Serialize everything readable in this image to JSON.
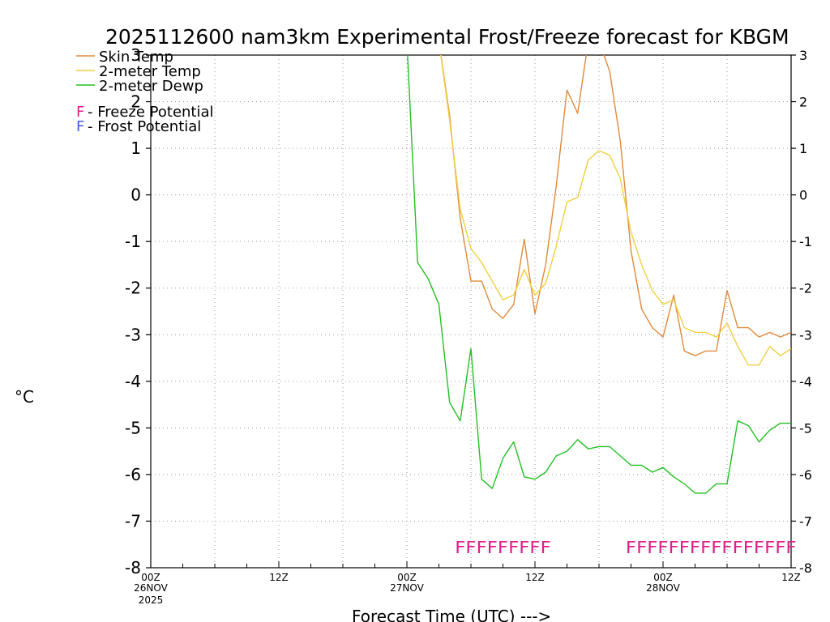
{
  "chart_data": {
    "type": "line",
    "title": "2025112600 nam3km Experimental Frost/Freeze forecast for KBGM",
    "xlabel": "Forecast Time (UTC) --->",
    "ylabel": "°C",
    "ylim": [
      -8,
      3
    ],
    "xlim": [
      0,
      60
    ],
    "grid": true,
    "yticks": [
      -8,
      -7,
      -6,
      -5,
      -4,
      -3,
      -2,
      -1,
      0,
      1,
      2,
      3
    ],
    "ytick_labels": [
      "-8",
      "-7",
      "-6",
      "-5",
      "-4",
      "-3",
      "-2",
      "-1",
      "0",
      "1",
      "2",
      "3"
    ],
    "xticks": [
      {
        "hour": 0,
        "label": "00Z",
        "sub": "26NOV",
        "sub2": "2025"
      },
      {
        "hour": 12,
        "label": "12Z",
        "sub": "",
        "sub2": ""
      },
      {
        "hour": 24,
        "label": "00Z",
        "sub": "27NOV",
        "sub2": ""
      },
      {
        "hour": 36,
        "label": "12Z",
        "sub": "",
        "sub2": ""
      },
      {
        "hour": 48,
        "label": "00Z",
        "sub": "28NOV",
        "sub2": ""
      },
      {
        "hour": 60,
        "label": "12Z",
        "sub": "",
        "sub2": ""
      }
    ],
    "series": [
      {
        "name": "Skin Temp",
        "color": "#e08a3c",
        "x": [
          27,
          28,
          29,
          30,
          31,
          32,
          33,
          34,
          35,
          36,
          37,
          38,
          39,
          40,
          41,
          42,
          43,
          44,
          45,
          46,
          47,
          48,
          49,
          50,
          51,
          52,
          53,
          54,
          55,
          56,
          57,
          58,
          59,
          60
        ],
        "y": [
          3.3,
          1.7,
          -0.5,
          -1.85,
          -1.85,
          -2.45,
          -2.65,
          -2.35,
          -0.95,
          -2.55,
          -1.5,
          0.2,
          2.25,
          1.75,
          3.3,
          3.3,
          2.65,
          1.15,
          -1.2,
          -2.45,
          -2.85,
          -3.05,
          -2.15,
          -3.35,
          -3.45,
          -3.35,
          -3.35,
          -2.05,
          -2.85,
          -2.85,
          -3.05,
          -2.95,
          -3.05,
          -2.95
        ]
      },
      {
        "name": "2-meter Temp",
        "color": "#f0d040",
        "x": [
          27,
          28,
          29,
          30,
          31,
          32,
          33,
          34,
          35,
          36,
          37,
          38,
          39,
          40,
          41,
          42,
          43,
          44,
          45,
          46,
          47,
          48,
          49,
          50,
          51,
          52,
          53,
          54,
          55,
          56,
          57,
          58,
          59,
          60
        ],
        "y": [
          3.3,
          1.6,
          -0.3,
          -1.15,
          -1.45,
          -1.85,
          -2.25,
          -2.15,
          -1.6,
          -2.15,
          -1.9,
          -1.1,
          -0.15,
          -0.05,
          0.75,
          0.95,
          0.85,
          0.35,
          -0.8,
          -1.5,
          -2.05,
          -2.35,
          -2.25,
          -2.85,
          -2.95,
          -2.95,
          -3.05,
          -2.75,
          -3.25,
          -3.65,
          -3.65,
          -3.25,
          -3.45,
          -3.3
        ]
      },
      {
        "name": "2-meter Dewp",
        "color": "#22c022",
        "x": [
          24,
          25,
          26,
          27,
          28,
          29,
          30,
          31,
          32,
          33,
          34,
          35,
          36,
          37,
          38,
          39,
          40,
          41,
          42,
          43,
          44,
          45,
          46,
          47,
          48,
          49,
          50,
          51,
          52,
          53,
          54,
          55,
          56,
          57,
          58,
          59,
          60
        ],
        "y": [
          3.3,
          -1.45,
          -1.8,
          -2.35,
          -4.45,
          -4.85,
          -3.3,
          -6.1,
          -6.3,
          -5.65,
          -5.3,
          -6.05,
          -6.1,
          -5.95,
          -5.6,
          -5.5,
          -5.25,
          -5.45,
          -5.4,
          -5.4,
          -5.6,
          -5.8,
          -5.8,
          -5.95,
          -5.85,
          -6.05,
          -6.2,
          -6.4,
          -6.4,
          -6.2,
          -6.2,
          -4.85,
          -4.95,
          -5.3,
          -5.05,
          -4.9,
          -4.9
        ]
      }
    ],
    "annotations": [
      {
        "text": "FFFFFFFFF",
        "start_hour": 28.5,
        "end_hour": 37.5,
        "y": -7.55,
        "color": "#e0208a"
      },
      {
        "text": "FFFFFFFFFFFFFFFF",
        "start_hour": 44.5,
        "end_hour": 60.5,
        "y": -7.55,
        "color": "#e0208a"
      }
    ],
    "legend": {
      "placement": "top-left",
      "items": [
        {
          "label": "Skin Temp",
          "color": "#e08a3c"
        },
        {
          "label": "2-meter Temp",
          "color": "#f0d040"
        },
        {
          "label": "2-meter Dewp",
          "color": "#22c022"
        }
      ],
      "key_items": [
        {
          "symbol": "F",
          "label": " - Freeze Potential",
          "color": "#e0208a"
        },
        {
          "symbol": "F",
          "label": " - Frost Potential",
          "color": "#4060e0"
        }
      ]
    }
  }
}
